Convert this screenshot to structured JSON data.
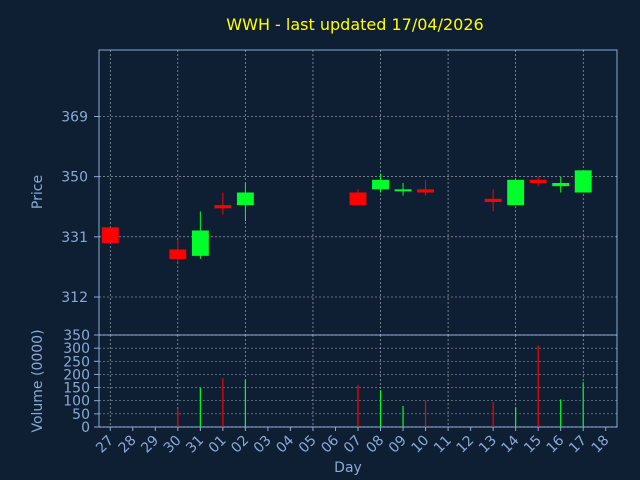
{
  "chart_data": {
    "type": "candlestick",
    "title": "WWH - last updated 17/04/2026",
    "xlabel": "Day",
    "ylabel_price": "Price",
    "ylabel_volume": "Volume (0000)",
    "grid": true,
    "colors": {
      "background": "#0f1f33",
      "title": "#ffff00",
      "axis_text": "#8aa9d6",
      "up": "#00ff2a",
      "down": "#ff0000",
      "grid": "#ffffff"
    },
    "x_ticks": [
      "27",
      "28",
      "29",
      "30",
      "31",
      "01",
      "02",
      "03",
      "04",
      "05",
      "06",
      "07",
      "08",
      "09",
      "10",
      "11",
      "12",
      "13",
      "14",
      "15",
      "16",
      "17",
      "18"
    ],
    "price_axis": {
      "ticks": [
        312,
        331,
        350,
        369
      ],
      "ylim": [
        300,
        390
      ]
    },
    "volume_axis": {
      "ticks": [
        0,
        50,
        100,
        150,
        200,
        250,
        300,
        350
      ],
      "ylim": [
        0,
        350
      ]
    },
    "candles": [
      {
        "day": "27",
        "open": 334,
        "high": 334,
        "low": 329,
        "close": 329,
        "volume": 0
      },
      {
        "day": "30",
        "open": 327,
        "high": 330,
        "low": 323,
        "close": 324,
        "volume": 70
      },
      {
        "day": "31",
        "open": 325,
        "high": 339,
        "low": 324,
        "close": 333,
        "volume": 150
      },
      {
        "day": "01",
        "open": 341,
        "high": 345,
        "low": 338,
        "close": 340,
        "volume": 185
      },
      {
        "day": "02",
        "open": 341,
        "high": 348,
        "low": 336,
        "close": 345,
        "volume": 180
      },
      {
        "day": "07",
        "open": 345,
        "high": 346,
        "low": 341,
        "close": 341,
        "volume": 160
      },
      {
        "day": "08",
        "open": 346,
        "high": 351,
        "low": 345,
        "close": 349,
        "volume": 140
      },
      {
        "day": "09",
        "open": 346,
        "high": 348,
        "low": 344,
        "close": 346,
        "volume": 80
      },
      {
        "day": "10",
        "open": 346,
        "high": 349,
        "low": 344,
        "close": 345,
        "volume": 100
      },
      {
        "day": "13",
        "open": 343,
        "high": 346,
        "low": 339,
        "close": 342,
        "volume": 95
      },
      {
        "day": "14",
        "open": 341,
        "high": 349,
        "low": 341,
        "close": 349,
        "volume": 75
      },
      {
        "day": "15",
        "open": 349,
        "high": 350,
        "low": 347,
        "close": 348,
        "volume": 310
      },
      {
        "day": "16",
        "open": 347,
        "high": 350,
        "low": 345,
        "close": 348,
        "volume": 105
      },
      {
        "day": "17",
        "open": 345,
        "high": 352,
        "low": 345,
        "close": 352,
        "volume": 170
      }
    ]
  }
}
